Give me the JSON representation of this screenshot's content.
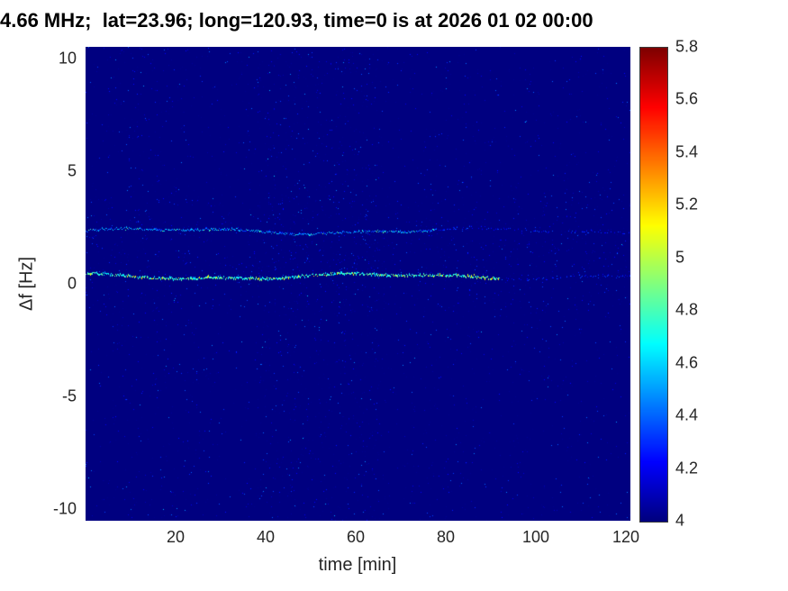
{
  "chart_data": {
    "type": "heatmap",
    "title": "4.66 MHz;  lat=23.96; long=120.93, time=0 is at 2026 01 02 00:00",
    "xlabel": "time [min]",
    "ylabel": "Δf [Hz]",
    "xlim": [
      0,
      121
    ],
    "ylim": [
      -10.5,
      10.5
    ],
    "x_ticks": [
      20,
      40,
      60,
      80,
      100,
      120
    ],
    "y_ticks": [
      10,
      5,
      0,
      -5,
      -10
    ],
    "grid": false,
    "colorbar": {
      "min": 4,
      "max": 5.8,
      "ticks": [
        4,
        4.2,
        4.4,
        4.6,
        4.8,
        5,
        5.2,
        5.4,
        5.6,
        5.8
      ],
      "colormap": "jet",
      "position": "right"
    },
    "background_value": 4,
    "series": [
      {
        "name": "upper doppler trace",
        "y_center": 2.35,
        "x_start": 0,
        "x_end": 121,
        "strong_until_min": 78,
        "peak_value": 4.9
      },
      {
        "name": "lower doppler trace",
        "y_center": 0.35,
        "x_start": 0,
        "x_end": 121,
        "strong_until_min": 92,
        "peak_value": 5.2
      }
    ],
    "noise": {
      "description": "sparse speckle noise over deep-blue background",
      "typical_value_range": [
        4.0,
        4.5
      ],
      "dense_band_minutes": [
        38,
        66
      ]
    }
  }
}
